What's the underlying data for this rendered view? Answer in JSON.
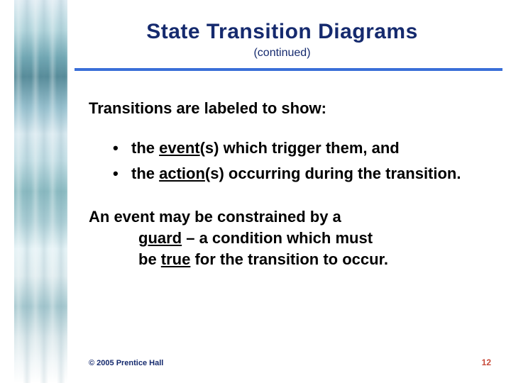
{
  "colors": {
    "title": "#152a6e",
    "body": "#000000",
    "rule": "#3a6fd8",
    "page_number": "#c74a3a",
    "footer": "#152a6e"
  },
  "fontsize": {
    "title": 30,
    "subtitle": 16,
    "lead": 22,
    "bullet": 22,
    "para": 22,
    "footer": 11,
    "page": 12
  },
  "title": "State Transition Diagrams",
  "subtitle": "(continued)",
  "lead": "Transitions are labeled to show:",
  "bullets": [
    {
      "pre": "the ",
      "u": "event",
      "post": "(s) which trigger them, and"
    },
    {
      "pre": "the ",
      "u": "action",
      "post": "(s) occurring during the transition."
    }
  ],
  "para": {
    "line1_pre": "An event may be constrained by a",
    "line2_u": "guard",
    "line2_mid": " – a condition which must",
    "line3_pre": "be ",
    "line3_u": "true",
    "line3_post": " for the transition to occur."
  },
  "footer": "© 2005  Prentice Hall",
  "page": "12"
}
